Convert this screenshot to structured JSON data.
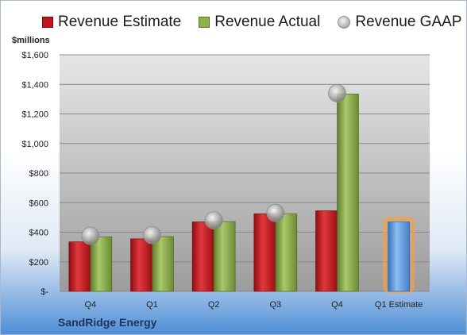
{
  "unit_label": "$millions",
  "company": "SandRidge Energy",
  "legend": {
    "estimate": "Revenue Estimate",
    "actual": "Revenue Actual",
    "gaap": "Revenue GAAP"
  },
  "colors": {
    "estimate": "#c0151b",
    "actual": "#8fb14a",
    "gaap": "#a8a8a8",
    "future_estimate": "#5b9be0",
    "highlight": "#f0a04b"
  },
  "chart_data": {
    "type": "bar",
    "categories": [
      "Q4",
      "Q1",
      "Q2",
      "Q3",
      "Q4",
      "Q1 Estimate"
    ],
    "series": [
      {
        "name": "Revenue Estimate",
        "values": [
          335,
          355,
          470,
          525,
          545,
          470
        ]
      },
      {
        "name": "Revenue Actual",
        "values": [
          368,
          370,
          472,
          525,
          1335,
          null
        ]
      },
      {
        "name": "Revenue GAAP",
        "type": "scatter",
        "values": [
          375,
          380,
          480,
          530,
          1340,
          null
        ]
      }
    ],
    "ylim": [
      0,
      1600
    ],
    "yticks": [
      "$-",
      "$200",
      "$400",
      "$600",
      "$800",
      "$1,000",
      "$1,200",
      "$1,400",
      "$1,600"
    ],
    "legend_position": "top"
  }
}
